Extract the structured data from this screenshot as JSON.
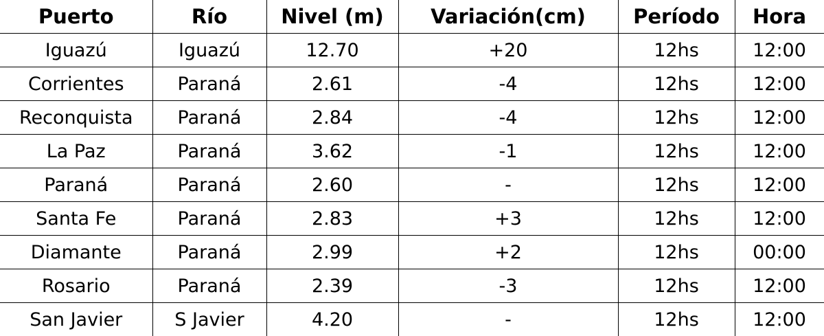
{
  "table": {
    "headers": [
      "Puerto",
      "Río",
      "Nivel (m)",
      "Variación(cm)",
      "Período",
      "Hora"
    ],
    "rows": [
      [
        "Iguazú",
        "Iguazú",
        "12.70",
        "+20",
        "12hs",
        "12:00"
      ],
      [
        "Corrientes",
        "Paraná",
        "2.61",
        "-4",
        "12hs",
        "12:00"
      ],
      [
        "Reconquista",
        "Paraná",
        "2.84",
        "-4",
        "12hs",
        "12:00"
      ],
      [
        "La Paz",
        "Paraná",
        "3.62",
        "-1",
        "12hs",
        "12:00"
      ],
      [
        "Paraná",
        "Paraná",
        "2.60",
        "-",
        "12hs",
        "12:00"
      ],
      [
        "Santa Fe",
        "Paraná",
        "2.83",
        "+3",
        "12hs",
        "12:00"
      ],
      [
        "Diamante",
        "Paraná",
        "2.99",
        "+2",
        "12hs",
        "00:00"
      ],
      [
        "Rosario",
        "Paraná",
        "2.39",
        "-3",
        "12hs",
        "12:00"
      ],
      [
        "San Javier",
        "S Javier",
        "4.20",
        "-",
        "12hs",
        "12:00"
      ]
    ]
  }
}
